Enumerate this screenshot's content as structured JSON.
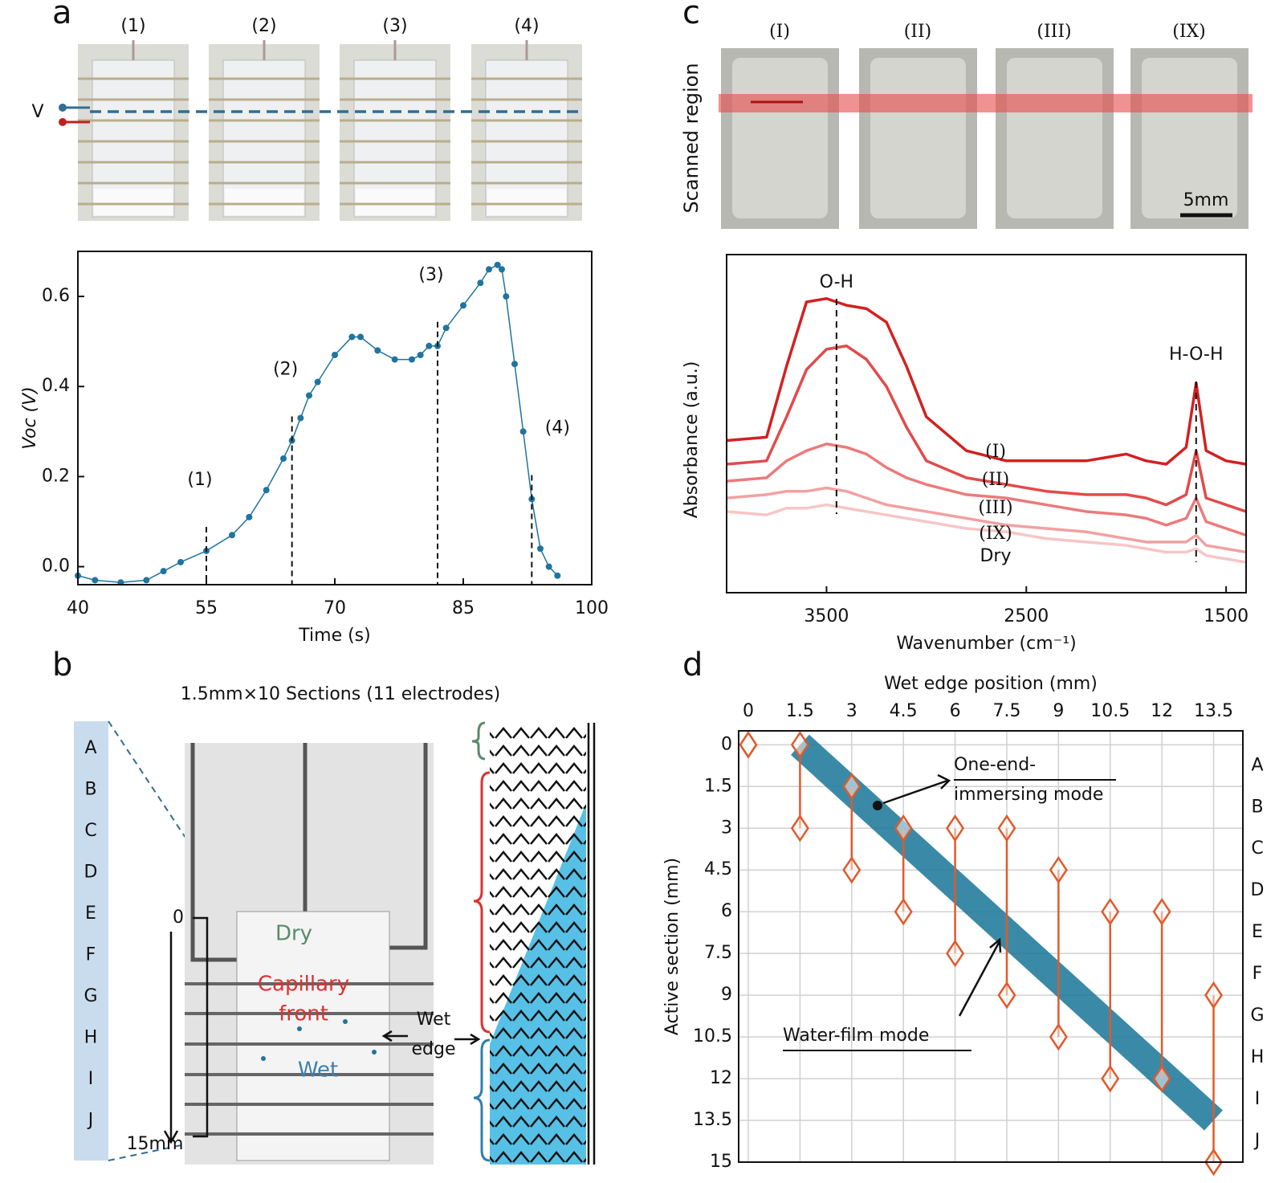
{
  "panel_labels": [
    "a",
    "b",
    "c",
    "d"
  ],
  "photos_a": {
    "labels": [
      "(1)",
      "(2)",
      "(3)",
      "(4)"
    ],
    "probe": "V"
  },
  "photos_c": {
    "labels": [
      "(I)",
      "(II)",
      "(III)",
      "(IX)"
    ],
    "side_label": "Scanned region",
    "scale_bar": "5mm"
  },
  "diagram_b": {
    "title": "1.5mm×10 Sections (11 electrodes)",
    "sections": [
      "A",
      "B",
      "C",
      "D",
      "E",
      "F",
      "G",
      "H",
      "I",
      "J"
    ],
    "top": "0",
    "bottom": "15mm",
    "dry": "Dry",
    "front": [
      "Capillary",
      "front"
    ],
    "wet": "Wet",
    "edge": [
      "Wet",
      "edge"
    ]
  },
  "chart_data": [
    {
      "type": "line",
      "xlabel": "Time (s)",
      "ylabel": "Voc (V)",
      "color": "#1f74a0",
      "x": [
        40,
        42,
        45,
        48,
        50,
        52,
        55,
        58,
        60,
        62,
        64,
        65,
        66,
        67,
        68,
        70,
        72,
        73,
        75,
        77,
        79,
        80,
        81,
        82,
        83,
        85,
        87,
        88,
        89,
        89.5,
        90,
        91,
        92,
        93,
        94,
        95,
        96
      ],
      "values": [
        -0.02,
        -0.03,
        -0.035,
        -0.03,
        -0.01,
        0.01,
        0.035,
        0.07,
        0.11,
        0.17,
        0.24,
        0.28,
        0.33,
        0.38,
        0.41,
        0.47,
        0.51,
        0.51,
        0.48,
        0.46,
        0.46,
        0.47,
        0.49,
        0.49,
        0.53,
        0.58,
        0.63,
        0.66,
        0.67,
        0.66,
        0.6,
        0.45,
        0.3,
        0.15,
        0.04,
        0.0,
        -0.02
      ],
      "events": [
        55,
        65,
        82,
        93
      ],
      "event_labels": [
        "(1)",
        "(2)",
        "(3)",
        "(4)"
      ],
      "xlim": [
        40,
        100
      ],
      "ylim": [
        -0.04,
        0.7
      ],
      "xticks": [
        40,
        55,
        70,
        85,
        100
      ],
      "yticks": [
        {
          "value": 0,
          "label": "0.0"
        },
        0.2,
        0.4,
        0.6
      ]
    },
    {
      "type": "line",
      "xlabel": "Wavenumber (cm⁻¹)",
      "ylabel": "Absorbance (a.u.)",
      "x": [
        4000,
        3800,
        3700,
        3600,
        3500,
        3400,
        3300,
        3200,
        3100,
        3000,
        2800,
        2600,
        2400,
        2200,
        2000,
        1900,
        1800,
        1700,
        1650,
        1600,
        1500,
        1400
      ],
      "series": [
        {
          "name": "(I)",
          "color": "#d42020",
          "values": [
            0.45,
            0.46,
            0.67,
            0.86,
            0.87,
            0.85,
            0.84,
            0.8,
            0.67,
            0.52,
            0.42,
            0.39,
            0.39,
            0.39,
            0.41,
            0.39,
            0.38,
            0.43,
            0.62,
            0.42,
            0.39,
            0.38
          ]
        },
        {
          "name": "(II)",
          "color": "#e24a4a",
          "values": [
            0.38,
            0.39,
            0.52,
            0.66,
            0.72,
            0.73,
            0.69,
            0.61,
            0.49,
            0.39,
            0.34,
            0.32,
            0.3,
            0.29,
            0.29,
            0.28,
            0.26,
            0.29,
            0.42,
            0.28,
            0.26,
            0.24
          ]
        },
        {
          "name": "(III)",
          "color": "#ec7a7a",
          "values": [
            0.33,
            0.34,
            0.39,
            0.42,
            0.44,
            0.43,
            0.41,
            0.37,
            0.34,
            0.32,
            0.29,
            0.28,
            0.26,
            0.24,
            0.23,
            0.22,
            0.2,
            0.22,
            0.28,
            0.21,
            0.19,
            0.17
          ]
        },
        {
          "name": "(IX)",
          "color": "#f1a1a1",
          "values": [
            0.28,
            0.29,
            0.3,
            0.3,
            0.31,
            0.3,
            0.28,
            0.26,
            0.25,
            0.24,
            0.22,
            0.2,
            0.19,
            0.18,
            0.16,
            0.15,
            0.15,
            0.15,
            0.17,
            0.14,
            0.13,
            0.12
          ]
        },
        {
          "name": "Dry",
          "color": "#f6c6c6",
          "values": [
            0.24,
            0.23,
            0.25,
            0.25,
            0.26,
            0.25,
            0.24,
            0.23,
            0.22,
            0.21,
            0.19,
            0.18,
            0.16,
            0.15,
            0.14,
            0.13,
            0.12,
            0.12,
            0.13,
            0.11,
            0.1,
            0.09
          ]
        }
      ],
      "peaks": [
        {
          "label": "O-H",
          "x": 3450
        },
        {
          "label": "H-O-H",
          "x": 1650
        }
      ],
      "xlim": [
        4000,
        1400
      ],
      "ylim": [
        0,
        1
      ],
      "xticks": [
        3500,
        2500,
        1500
      ]
    },
    {
      "type": "range",
      "xlabel": "Wet edge position (mm)",
      "ylabel": "Active section (mm)",
      "color": "#e05a2a",
      "grid": true,
      "x": [
        0,
        1.5,
        3,
        4.5,
        6,
        7.5,
        9,
        10.5,
        12,
        13.5
      ],
      "low": [
        0,
        0,
        1.5,
        3,
        3,
        3,
        4.5,
        6,
        6,
        9
      ],
      "high": [
        0,
        3,
        4.5,
        6,
        7.5,
        9,
        10.5,
        12,
        12,
        15
      ],
      "band": {
        "x": [
          1.5,
          13.5
        ],
        "y": [
          0,
          13.5
        ],
        "color": "#1f7a9c"
      },
      "right_labels": [
        "A",
        "B",
        "C",
        "D",
        "E",
        "F",
        "G",
        "H",
        "I",
        "J"
      ],
      "annotations": [
        {
          "lines": [
            "One-end-",
            "immersing mode"
          ]
        },
        {
          "lines": [
            "Water-film mode"
          ]
        }
      ],
      "xlim": [
        -0.28,
        14.35
      ],
      "ylim": [
        15,
        -0.5
      ],
      "xticks": [
        0,
        1.5,
        3,
        4.5,
        6,
        7.5,
        9,
        10.5,
        12,
        13.5
      ],
      "yticks": [
        0,
        1.5,
        3,
        4.5,
        6,
        7.5,
        9,
        10.5,
        12,
        13.5,
        15
      ]
    }
  ]
}
